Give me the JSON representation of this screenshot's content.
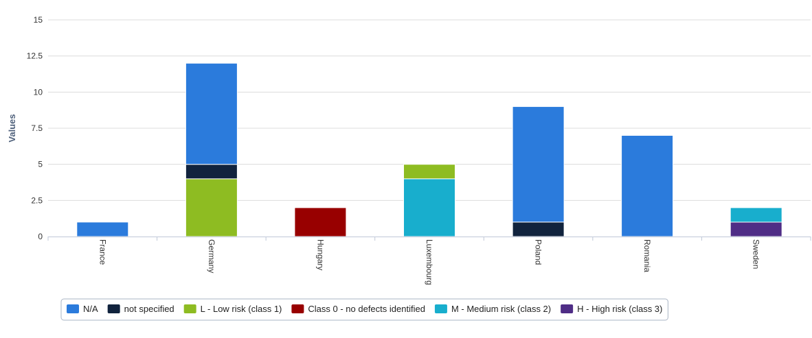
{
  "chart_data": {
    "type": "bar",
    "stacked": true,
    "ylabel": "Values",
    "xlabel": "",
    "title": "",
    "ylim": [
      0,
      15
    ],
    "yticks": [
      0,
      2.5,
      5,
      7.5,
      10,
      12.5,
      15
    ],
    "ytick_labels": [
      "0",
      "2.5",
      "5",
      "7.5",
      "10",
      "12.5",
      "15"
    ],
    "grid": true,
    "legend_position": "bottom-center",
    "categories": [
      "France",
      "Germany",
      "Hungary",
      "Luxembourg",
      "Poland",
      "Romania",
      "Sweden"
    ],
    "series": [
      {
        "name": "N/A",
        "color": "#2b7bdc",
        "values": [
          1,
          7,
          0,
          0,
          8,
          7,
          0
        ]
      },
      {
        "name": "not specified",
        "color": "#11233d",
        "values": [
          0,
          1,
          0,
          0,
          1,
          0,
          0
        ]
      },
      {
        "name": "L - Low risk (class 1)",
        "color": "#8ebc22",
        "values": [
          0,
          4,
          0,
          1,
          0,
          0,
          0
        ]
      },
      {
        "name": "Class 0 - no defects identified",
        "color": "#980000",
        "values": [
          0,
          0,
          2,
          0,
          0,
          0,
          0
        ]
      },
      {
        "name": "M - Medium risk (class 2)",
        "color": "#18aecd",
        "values": [
          0,
          0,
          0,
          4,
          0,
          0,
          1
        ]
      },
      {
        "name": "H - High risk (class 3)",
        "color": "#4f2d86",
        "values": [
          0,
          0,
          0,
          0,
          0,
          0,
          1
        ]
      }
    ],
    "stack_order_bottom_to_top": [
      "H - High risk (class 3)",
      "M - Medium risk (class 2)",
      "Class 0 - no defects identified",
      "L - Low risk (class 1)",
      "not specified",
      "N/A"
    ]
  }
}
